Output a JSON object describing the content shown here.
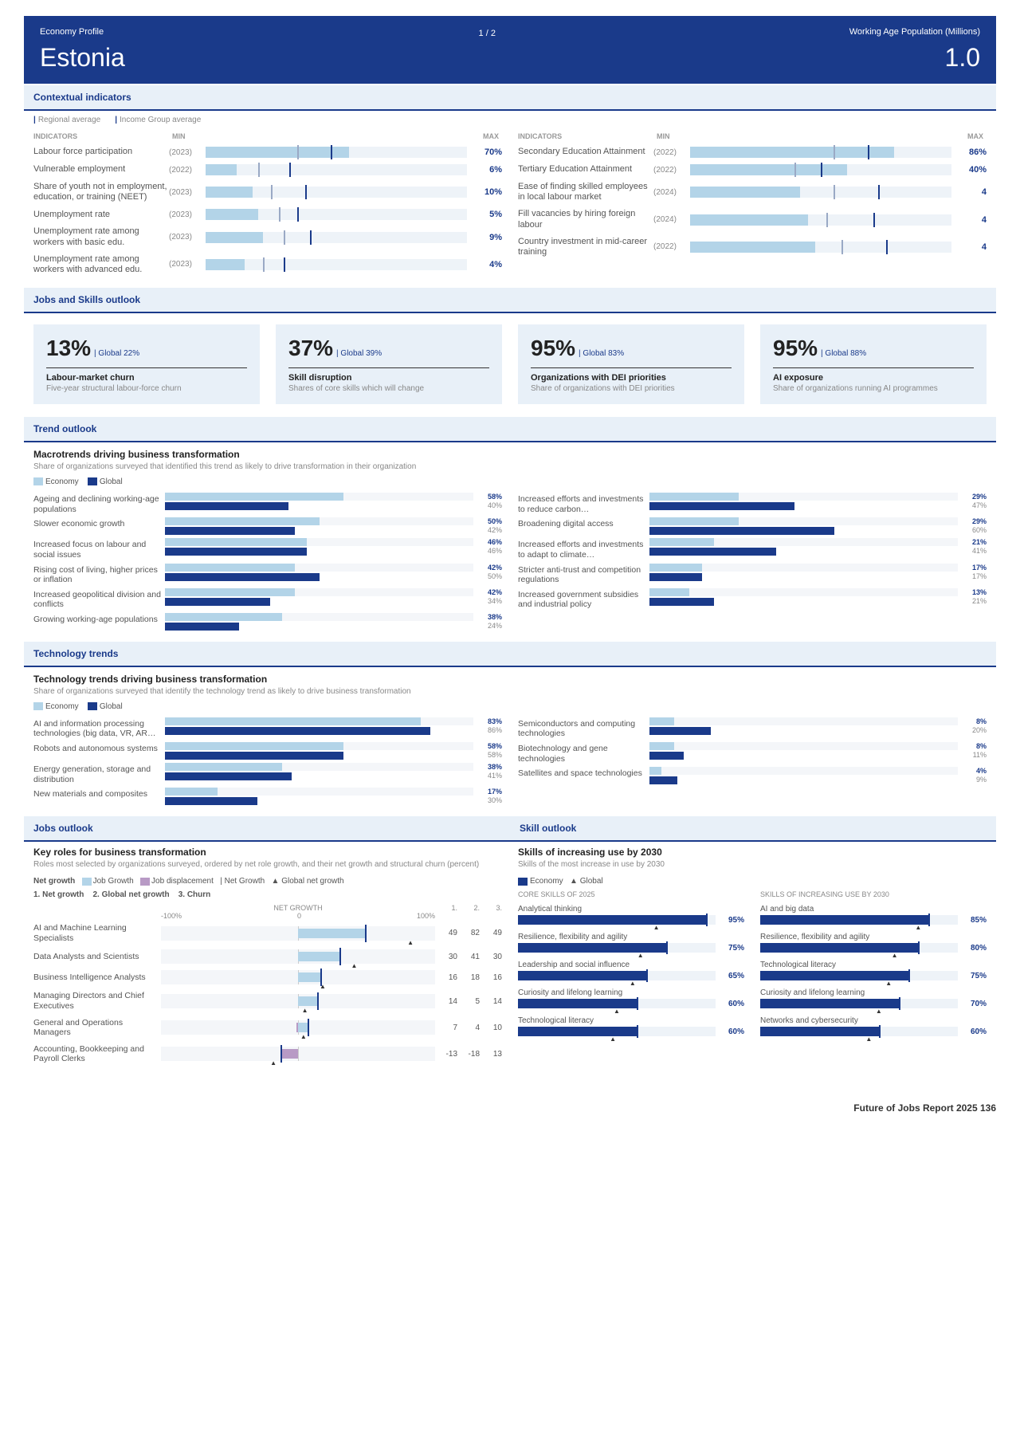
{
  "header": {
    "profile_label": "Economy Profile",
    "country": "Estonia",
    "page": "1  /  2",
    "pop_label": "Working Age Population (Millions)",
    "pop_value": "1.0"
  },
  "sections": {
    "contextual": "Contextual indicators",
    "jobs_skills": "Jobs and Skills outlook",
    "trend": "Trend outlook",
    "tech": "Technology trends",
    "jobs": "Jobs outlook",
    "skill": "Skill outlook"
  },
  "legend": {
    "regional": "Regional average",
    "income": "Income Group average"
  },
  "ind_head": {
    "label": "INDICATORS",
    "min": "min",
    "max": "max"
  },
  "indicators_left": [
    {
      "label": "Labour force participation",
      "year": "(2023)",
      "fill": 55,
      "t1": 35,
      "t2": 48,
      "value": "70%"
    },
    {
      "label": "Vulnerable employment",
      "year": "(2022)",
      "fill": 12,
      "t1": 20,
      "t2": 32,
      "value": "6%"
    },
    {
      "label": "Share of youth not in employment, education, or training (NEET)",
      "year": "(2023)",
      "fill": 18,
      "t1": 25,
      "t2": 38,
      "value": "10%"
    },
    {
      "label": "Unemployment rate",
      "year": "(2023)",
      "fill": 20,
      "t1": 28,
      "t2": 35,
      "value": "5%"
    },
    {
      "label": "Unemployment rate among workers with basic edu.",
      "year": "(2023)",
      "fill": 22,
      "t1": 30,
      "t2": 40,
      "value": "9%"
    },
    {
      "label": "Unemployment rate among workers with advanced edu.",
      "year": "(2023)",
      "fill": 15,
      "t1": 22,
      "t2": 30,
      "value": "4%"
    }
  ],
  "indicators_right": [
    {
      "label": "Secondary Education Attainment",
      "year": "(2022)",
      "fill": 78,
      "t1": 55,
      "t2": 68,
      "value": "86%"
    },
    {
      "label": "Tertiary Education Attainment",
      "year": "(2022)",
      "fill": 60,
      "t1": 40,
      "t2": 50,
      "value": "40%"
    },
    {
      "label": "Ease of finding skilled employees in local labour market",
      "year": "(2024)",
      "fill": 42,
      "t1": 55,
      "t2": 72,
      "value": "4"
    },
    {
      "label": "Fill vacancies by hiring foreign labour",
      "year": "(2024)",
      "fill": 45,
      "t1": 52,
      "t2": 70,
      "value": "4"
    },
    {
      "label": "Country investment in mid-career training",
      "year": "(2022)",
      "fill": 48,
      "t1": 58,
      "t2": 75,
      "value": "4"
    }
  ],
  "outlook": [
    {
      "big": "13%",
      "glob": "Global  22%",
      "title": "Labour-market churn",
      "desc": "Five-year structural labour-force churn"
    },
    {
      "big": "37%",
      "glob": "Global  39%",
      "title": "Skill disruption",
      "desc": "Shares of core skills which will change"
    },
    {
      "big": "95%",
      "glob": "Global  83%",
      "title": "Organizations with DEI priorities",
      "desc": "Share of organizations with DEI priorities"
    },
    {
      "big": "95%",
      "glob": "Global  88%",
      "title": "AI exposure",
      "desc": "Share of organizations running AI programmes"
    }
  ],
  "macrotrends": {
    "title": "Macrotrends driving business transformation",
    "sub": "Share of organizations surveyed that identified this trend as likely to drive transformation in their organization",
    "legend_econ": "Economy",
    "legend_glob": "Global",
    "left": [
      {
        "label": "Ageing and declining working-age populations",
        "e": 58,
        "g": 40
      },
      {
        "label": "Slower economic growth",
        "e": 50,
        "g": 42
      },
      {
        "label": "Increased focus on labour and social issues",
        "e": 46,
        "g": 46
      },
      {
        "label": "Rising cost of living, higher prices or inflation",
        "e": 42,
        "g": 50
      },
      {
        "label": "Increased geopolitical division and conflicts",
        "e": 42,
        "g": 34
      },
      {
        "label": "Growing working-age populations",
        "e": 38,
        "g": 24
      }
    ],
    "right": [
      {
        "label": "Increased efforts and investments to reduce carbon…",
        "e": 29,
        "g": 47
      },
      {
        "label": "Broadening digital access",
        "e": 29,
        "g": 60
      },
      {
        "label": "Increased efforts and investments to adapt to climate…",
        "e": 21,
        "g": 41
      },
      {
        "label": "Stricter anti-trust and competition regulations",
        "e": 17,
        "g": 17
      },
      {
        "label": "Increased government subsidies and industrial policy",
        "e": 13,
        "g": 21
      }
    ]
  },
  "techtrends": {
    "title": "Technology trends driving business transformation",
    "sub": "Share of organizations surveyed that identify the technology trend as likely to drive business transformation",
    "left": [
      {
        "label": "AI and information processing technologies (big data, VR, AR…",
        "e": 83,
        "g": 86
      },
      {
        "label": "Robots and autonomous systems",
        "e": 58,
        "g": 58
      },
      {
        "label": "Energy generation, storage and distribution",
        "e": 38,
        "g": 41
      },
      {
        "label": "New materials and composites",
        "e": 17,
        "g": 30
      }
    ],
    "right": [
      {
        "label": "Semiconductors and computing technologies",
        "e": 8,
        "g": 20
      },
      {
        "label": "Biotechnology and gene technologies",
        "e": 8,
        "g": 11
      },
      {
        "label": "Satellites and space technologies",
        "e": 4,
        "g": 9
      }
    ]
  },
  "roles": {
    "title": "Key roles for business transformation",
    "sub": "Roles most selected by organizations surveyed, ordered by net role growth, and their net growth and structural churn (percent)",
    "legend": {
      "net": "Net growth",
      "grow": "Job Growth",
      "disp": "Job displacement",
      "netg": "Net Growth",
      "gnet": "Global net growth"
    },
    "numlabels": {
      "n1": "1. Net growth",
      "n2": "2. Global net growth",
      "n3": "3. Churn"
    },
    "axis": {
      "neg": "-100%",
      "zero": "0",
      "pos": "100%",
      "head": "NET GROWTH",
      "c1": "1.",
      "c2": "2.",
      "c3": "3."
    },
    "rows": [
      {
        "label": "AI and Machine Learning Specialists",
        "grow": 49,
        "disp": 0,
        "net": 49,
        "gnet": 82,
        "churn": 49
      },
      {
        "label": "Data Analysts and Scientists",
        "grow": 30,
        "disp": 0,
        "net": 30,
        "gnet": 41,
        "churn": 30
      },
      {
        "label": "Business Intelligence Analysts",
        "grow": 16,
        "disp": 0,
        "net": 16,
        "gnet": 18,
        "churn": 16
      },
      {
        "label": "Managing Directors and Chief Executives",
        "grow": 14,
        "disp": 0,
        "net": 14,
        "gnet": 5,
        "churn": 14
      },
      {
        "label": "General and Operations Managers",
        "grow": 8,
        "disp": 1,
        "net": 7,
        "gnet": 4,
        "churn": 10
      },
      {
        "label": "Accounting, Bookkeeping and Payroll Clerks",
        "grow": 0,
        "disp": 13,
        "net": -13,
        "gnet": -18,
        "churn": 13
      }
    ]
  },
  "skills": {
    "title": "Skills of increasing use by 2030",
    "sub": "Skills of the most increase in use by 2030",
    "legend_econ": "Economy",
    "legend_glob": "Global",
    "core_head": "CORE SKILLS OF 2025",
    "inc_head": "SKILLS OF INCREASING USE BY 2030",
    "core": [
      {
        "label": "Analytical thinking",
        "e": 95,
        "g": 70
      },
      {
        "label": "Resilience, flexibility and agility",
        "e": 75,
        "g": 62
      },
      {
        "label": "Leadership and social influence",
        "e": 65,
        "g": 58
      },
      {
        "label": "Curiosity and lifelong learning",
        "e": 60,
        "g": 50
      },
      {
        "label": "Technological literacy",
        "e": 60,
        "g": 48
      }
    ],
    "inc": [
      {
        "label": "AI and big data",
        "e": 85,
        "g": 80
      },
      {
        "label": "Resilience, flexibility and agility",
        "e": 80,
        "g": 68
      },
      {
        "label": "Technological literacy",
        "e": 75,
        "g": 65
      },
      {
        "label": "Curiosity and lifelong learning",
        "e": 70,
        "g": 60
      },
      {
        "label": "Networks and cybersecurity",
        "e": 60,
        "g": 55
      }
    ]
  },
  "footer": "Future of Jobs Report 2025   136"
}
